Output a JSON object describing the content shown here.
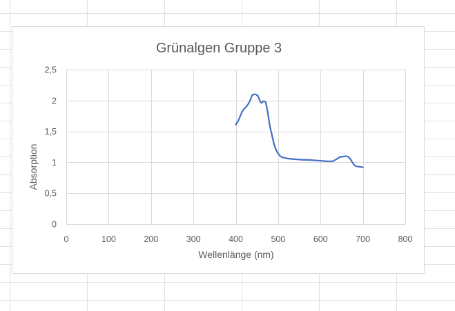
{
  "chart_data": {
    "type": "line",
    "title": "Grünalgen Gruppe 3",
    "xlabel": "Wellenlänge (nm)",
    "ylabel": "Absorption",
    "xlim": [
      0,
      800
    ],
    "ylim": [
      0,
      2.5
    ],
    "x_ticks": [
      "0",
      "100",
      "200",
      "300",
      "400",
      "500",
      "600",
      "700",
      "800"
    ],
    "y_ticks": [
      "0",
      "0,5",
      "1",
      "1,5",
      "2",
      "2,5"
    ],
    "grid": true,
    "legend": "none",
    "series": [
      {
        "color": "#4472c4",
        "points": [
          [
            400,
            1.61
          ],
          [
            405,
            1.66
          ],
          [
            410,
            1.74
          ],
          [
            415,
            1.82
          ],
          [
            420,
            1.87
          ],
          [
            425,
            1.9
          ],
          [
            430,
            1.95
          ],
          [
            435,
            2.02
          ],
          [
            438,
            2.08
          ],
          [
            442,
            2.1
          ],
          [
            447,
            2.1
          ],
          [
            452,
            2.08
          ],
          [
            455,
            2.03
          ],
          [
            458,
            1.98
          ],
          [
            461,
            1.96
          ],
          [
            465,
            1.99
          ],
          [
            470,
            1.98
          ],
          [
            473,
            1.9
          ],
          [
            477,
            1.74
          ],
          [
            480,
            1.6
          ],
          [
            485,
            1.45
          ],
          [
            490,
            1.3
          ],
          [
            495,
            1.2
          ],
          [
            500,
            1.14
          ],
          [
            505,
            1.1
          ],
          [
            510,
            1.08
          ],
          [
            520,
            1.065
          ],
          [
            530,
            1.055
          ],
          [
            540,
            1.05
          ],
          [
            550,
            1.045
          ],
          [
            560,
            1.04
          ],
          [
            570,
            1.04
          ],
          [
            580,
            1.035
          ],
          [
            590,
            1.03
          ],
          [
            600,
            1.025
          ],
          [
            610,
            1.02
          ],
          [
            620,
            1.015
          ],
          [
            630,
            1.02
          ],
          [
            635,
            1.04
          ],
          [
            640,
            1.06
          ],
          [
            645,
            1.085
          ],
          [
            650,
            1.09
          ],
          [
            655,
            1.095
          ],
          [
            660,
            1.1
          ],
          [
            665,
            1.09
          ],
          [
            670,
            1.06
          ],
          [
            675,
            1.0
          ],
          [
            680,
            0.95
          ],
          [
            685,
            0.935
          ],
          [
            690,
            0.93
          ],
          [
            695,
            0.925
          ],
          [
            700,
            0.92
          ]
        ]
      }
    ]
  }
}
